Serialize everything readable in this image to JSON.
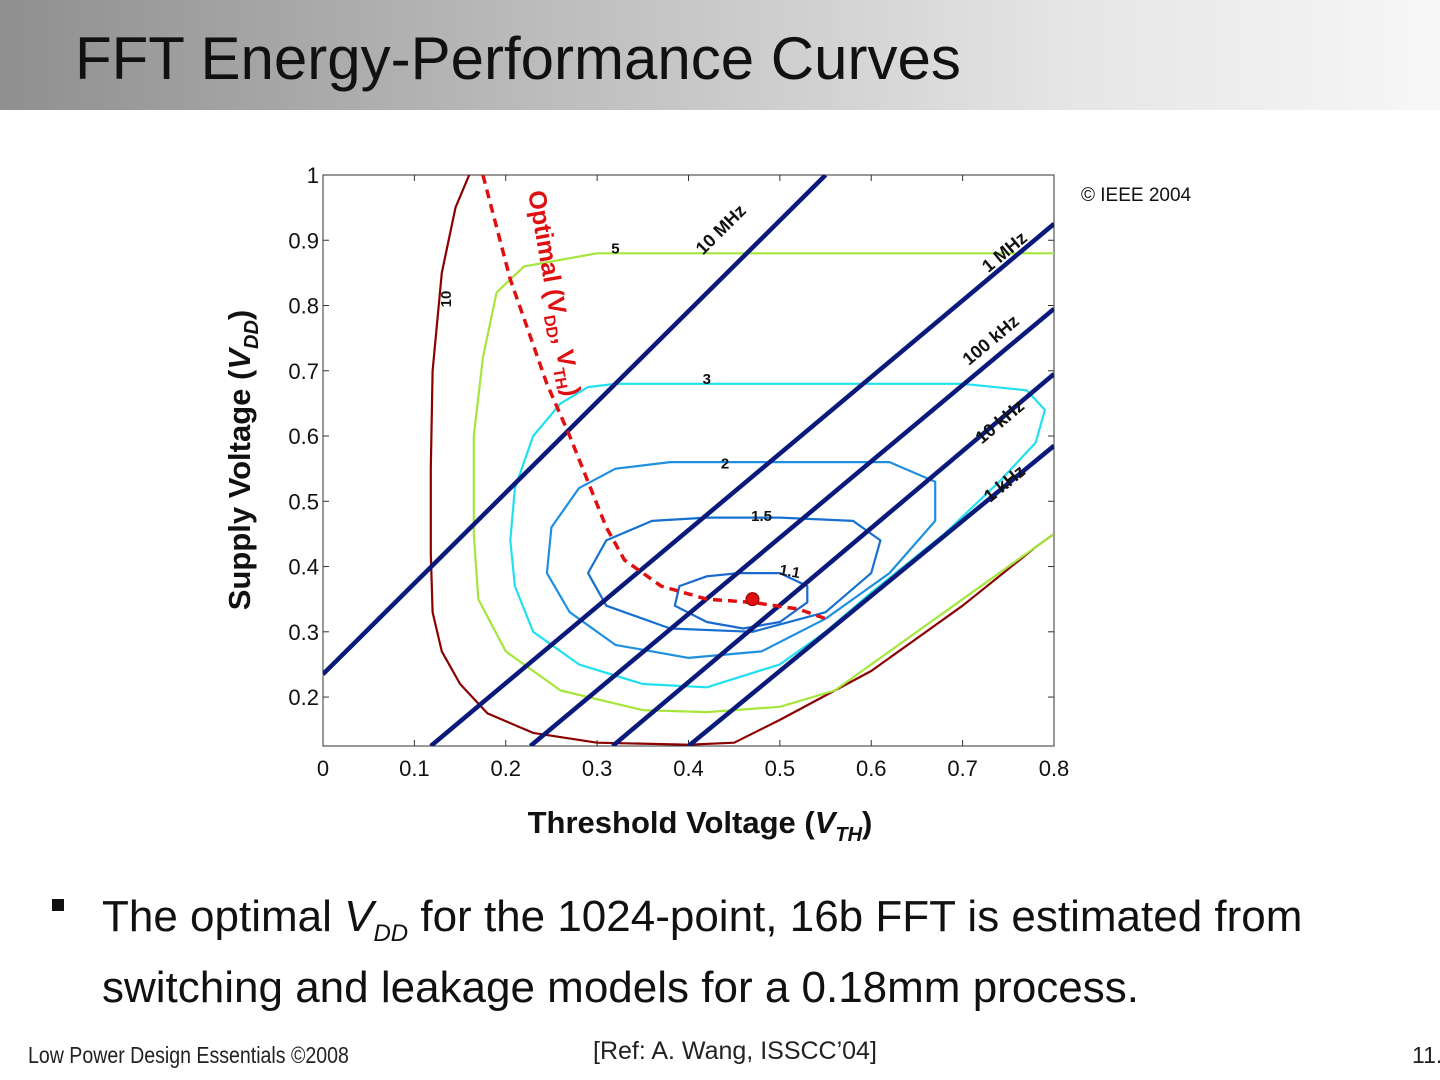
{
  "slide": {
    "title": "FFT Energy-Performance Curves",
    "bullet": {
      "text_before": "The optimal ",
      "var": "V",
      "var_sub": "DD",
      "text_after": "  for the 1024-point, 16b FFT is estimated from switching and leakage models for a 0.18",
      "unit": "mm",
      "text_end": " process."
    },
    "footer": {
      "left": "Low Power Design Essentials ©2008",
      "ref": "[Ref: A. Wang, ISSCC’04]",
      "page": "11."
    }
  },
  "chart_data": {
    "type": "contour",
    "copyright": "© IEEE 2004",
    "xlabel": {
      "main": "Threshold Voltage (",
      "var": "V",
      "sub": "TH",
      "end": ")"
    },
    "ylabel": {
      "main": "Supply Voltage (",
      "var": "V",
      "sub": "DD",
      "end": ")"
    },
    "xlim": [
      0,
      0.8
    ],
    "ylim": [
      0.125,
      1.0
    ],
    "xticks": [
      "0",
      "0.1",
      "0.2",
      "0.3",
      "0.4",
      "0.5",
      "0.6",
      "0.7",
      "0.8"
    ],
    "yticks": [
      "1",
      "0.9",
      "0.8",
      "0.7",
      "0.6",
      "0.5",
      "0.4",
      "0.3",
      "0.2"
    ],
    "energy_contours": [
      {
        "label": "10",
        "color": "#8b0000",
        "label_at": [
          0.14,
          0.81
        ],
        "label_rot": -90,
        "points": [
          [
            0.16,
            1.0
          ],
          [
            0.145,
            0.95
          ],
          [
            0.13,
            0.85
          ],
          [
            0.12,
            0.7
          ],
          [
            0.118,
            0.55
          ],
          [
            0.118,
            0.42
          ],
          [
            0.12,
            0.33
          ],
          [
            0.13,
            0.27
          ],
          [
            0.15,
            0.22
          ],
          [
            0.18,
            0.175
          ],
          [
            0.23,
            0.145
          ],
          [
            0.3,
            0.13
          ],
          [
            0.4,
            0.127
          ],
          [
            0.45,
            0.13
          ],
          [
            0.5,
            0.165
          ],
          [
            0.6,
            0.24
          ],
          [
            0.7,
            0.34
          ],
          [
            0.78,
            0.43
          ],
          [
            0.8,
            0.45
          ]
        ]
      },
      {
        "label": "5",
        "color": "#a6e63c",
        "label_at": [
          0.32,
          0.88
        ],
        "points": [
          [
            0.8,
            0.88
          ],
          [
            0.6,
            0.88
          ],
          [
            0.4,
            0.88
          ],
          [
            0.3,
            0.88
          ],
          [
            0.22,
            0.86
          ],
          [
            0.19,
            0.82
          ],
          [
            0.175,
            0.72
          ],
          [
            0.165,
            0.6
          ],
          [
            0.165,
            0.45
          ],
          [
            0.17,
            0.35
          ],
          [
            0.2,
            0.27
          ],
          [
            0.26,
            0.21
          ],
          [
            0.35,
            0.18
          ],
          [
            0.42,
            0.177
          ],
          [
            0.5,
            0.185
          ],
          [
            0.56,
            0.21
          ],
          [
            0.62,
            0.27
          ],
          [
            0.7,
            0.35
          ],
          [
            0.78,
            0.43
          ],
          [
            0.8,
            0.45
          ]
        ]
      },
      {
        "label": "3",
        "color": "#20e0f0",
        "label_at": [
          0.42,
          0.68
        ],
        "points": [
          [
            0.32,
            0.68
          ],
          [
            0.5,
            0.68
          ],
          [
            0.7,
            0.68
          ],
          [
            0.77,
            0.67
          ],
          [
            0.79,
            0.64
          ],
          [
            0.78,
            0.59
          ],
          [
            0.74,
            0.53
          ],
          [
            0.68,
            0.45
          ],
          [
            0.6,
            0.36
          ],
          [
            0.55,
            0.3
          ],
          [
            0.5,
            0.25
          ],
          [
            0.42,
            0.215
          ],
          [
            0.35,
            0.22
          ],
          [
            0.28,
            0.25
          ],
          [
            0.23,
            0.3
          ],
          [
            0.21,
            0.37
          ],
          [
            0.205,
            0.44
          ],
          [
            0.21,
            0.52
          ],
          [
            0.23,
            0.6
          ],
          [
            0.26,
            0.65
          ],
          [
            0.29,
            0.675
          ],
          [
            0.32,
            0.68
          ]
        ]
      },
      {
        "label": "2",
        "color": "#1f8fe0",
        "label_at": [
          0.44,
          0.55
        ],
        "points": [
          [
            0.38,
            0.56
          ],
          [
            0.52,
            0.56
          ],
          [
            0.62,
            0.56
          ],
          [
            0.67,
            0.53
          ],
          [
            0.67,
            0.47
          ],
          [
            0.62,
            0.39
          ],
          [
            0.55,
            0.32
          ],
          [
            0.48,
            0.27
          ],
          [
            0.4,
            0.26
          ],
          [
            0.32,
            0.28
          ],
          [
            0.27,
            0.33
          ],
          [
            0.245,
            0.39
          ],
          [
            0.25,
            0.46
          ],
          [
            0.28,
            0.52
          ],
          [
            0.32,
            0.55
          ],
          [
            0.38,
            0.56
          ]
        ]
      },
      {
        "label": "1.5",
        "color": "#1570d0",
        "label_at": [
          0.48,
          0.47
        ],
        "points": [
          [
            0.42,
            0.475
          ],
          [
            0.5,
            0.475
          ],
          [
            0.58,
            0.47
          ],
          [
            0.61,
            0.44
          ],
          [
            0.6,
            0.39
          ],
          [
            0.55,
            0.33
          ],
          [
            0.47,
            0.3
          ],
          [
            0.38,
            0.305
          ],
          [
            0.31,
            0.34
          ],
          [
            0.29,
            0.39
          ],
          [
            0.31,
            0.44
          ],
          [
            0.36,
            0.47
          ],
          [
            0.42,
            0.475
          ]
        ]
      },
      {
        "label": "1.1",
        "color": "#1a68d0",
        "label_at": [
          0.51,
          0.385
        ],
        "label_rot": 10,
        "points": [
          [
            0.455,
            0.39
          ],
          [
            0.5,
            0.39
          ],
          [
            0.53,
            0.37
          ],
          [
            0.53,
            0.345
          ],
          [
            0.5,
            0.315
          ],
          [
            0.46,
            0.305
          ],
          [
            0.42,
            0.315
          ],
          [
            0.385,
            0.34
          ],
          [
            0.39,
            0.37
          ],
          [
            0.42,
            0.385
          ],
          [
            0.455,
            0.39
          ]
        ]
      }
    ],
    "frequency_lines": [
      {
        "label": "10 MHz",
        "points": [
          [
            0.0,
            0.235
          ],
          [
            0.55,
            1.0
          ]
        ],
        "label_at": [
          0.44,
          0.91
        ]
      },
      {
        "label": "1 MHz",
        "points": [
          [
            0.118,
            0.125
          ],
          [
            0.8,
            0.925
          ]
        ],
        "label_at": [
          0.75,
          0.875
        ]
      },
      {
        "label": "100 kHz",
        "points": [
          [
            0.227,
            0.125
          ],
          [
            0.8,
            0.795
          ]
        ],
        "label_at": [
          0.735,
          0.74
        ]
      },
      {
        "label": "10 kHz",
        "points": [
          [
            0.317,
            0.125
          ],
          [
            0.8,
            0.695
          ]
        ],
        "label_at": [
          0.745,
          0.615
        ]
      },
      {
        "label": "1 kHz",
        "points": [
          [
            0.4,
            0.125
          ],
          [
            0.8,
            0.585
          ]
        ],
        "label_at": [
          0.75,
          0.52
        ]
      }
    ],
    "optimal_curve": {
      "label_main": "Optimal (V",
      "label_sub1": "DD",
      "label_mid": ", V",
      "label_sub2": "TH",
      "label_end": ")",
      "color": "#e01010",
      "points": [
        [
          0.175,
          1.0
        ],
        [
          0.19,
          0.92
        ],
        [
          0.205,
          0.84
        ],
        [
          0.225,
          0.76
        ],
        [
          0.245,
          0.68
        ],
        [
          0.27,
          0.6
        ],
        [
          0.29,
          0.53
        ],
        [
          0.31,
          0.46
        ],
        [
          0.33,
          0.41
        ],
        [
          0.37,
          0.37
        ],
        [
          0.42,
          0.35
        ],
        [
          0.47,
          0.345
        ],
        [
          0.52,
          0.335
        ],
        [
          0.55,
          0.32
        ]
      ]
    },
    "optimal_point": {
      "x": 0.47,
      "y": 0.35,
      "color": "#e01010"
    }
  }
}
